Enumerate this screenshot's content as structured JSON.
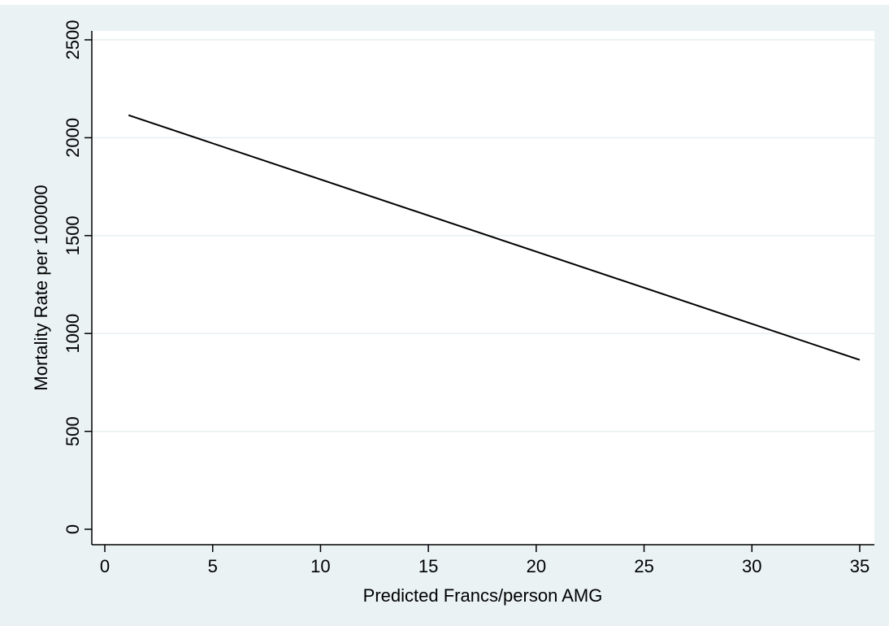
{
  "colors": {
    "outer_background": "#eaf2f3",
    "plot_background": "#ffffff",
    "grid": "#e6eff0",
    "line": "#000000",
    "axis": "#000000",
    "text": "#000000"
  },
  "chart_data": {
    "type": "line",
    "title": "",
    "xlabel": "Predicted Francs/person AMG",
    "ylabel": "Mortality Rate per 100000",
    "xlim": [
      0,
      35
    ],
    "ylim": [
      0,
      2500
    ],
    "xticks": [
      0,
      5,
      10,
      15,
      20,
      25,
      30,
      35
    ],
    "yticks": [
      0,
      500,
      1000,
      1500,
      2000,
      2500
    ],
    "grid": true,
    "legend": "none",
    "series": [
      {
        "x": [
          1.1,
          35
        ],
        "y": [
          2115,
          865
        ]
      }
    ]
  }
}
